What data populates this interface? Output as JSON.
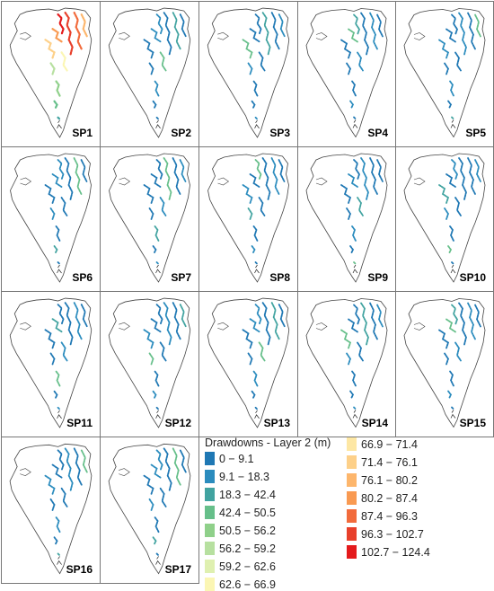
{
  "panels": [
    {
      "label": "SP1"
    },
    {
      "label": "SP2"
    },
    {
      "label": "SP3"
    },
    {
      "label": "SP4"
    },
    {
      "label": "SP5"
    },
    {
      "label": "SP6"
    },
    {
      "label": "SP7"
    },
    {
      "label": "SP8"
    },
    {
      "label": "SP9"
    },
    {
      "label": "SP10"
    },
    {
      "label": "SP11"
    },
    {
      "label": "SP12"
    },
    {
      "label": "SP13"
    },
    {
      "label": "SP14"
    },
    {
      "label": "SP15"
    },
    {
      "label": "SP16"
    },
    {
      "label": "SP17"
    }
  ],
  "legend": {
    "title": "Drawdowns - Layer  2 (m)",
    "classes": [
      {
        "label": "0 − 9.1",
        "color": "#1f78b4"
      },
      {
        "label": "9.1 − 18.3",
        "color": "#2b8cbe"
      },
      {
        "label": "18.3 − 42.4",
        "color": "#41a3a0"
      },
      {
        "label": "42.4 − 50.5",
        "color": "#66bf8a"
      },
      {
        "label": "50.5 − 56.2",
        "color": "#8fd08a"
      },
      {
        "label": "56.2 − 59.2",
        "color": "#b7e0a0"
      },
      {
        "label": "59.2 − 62.6",
        "color": "#dff0b0"
      },
      {
        "label": "62.6 − 66.9",
        "color": "#fbf6b4"
      },
      {
        "label": "66.9 − 71.4",
        "color": "#fde7a4"
      },
      {
        "label": "71.4 − 76.1",
        "color": "#fdd089"
      },
      {
        "label": "76.1 − 80.2",
        "color": "#fdb66c"
      },
      {
        "label": "80.2 − 87.4",
        "color": "#f99a52"
      },
      {
        "label": "87.4 − 96.3",
        "color": "#f26b3c"
      },
      {
        "label": "96.3 − 102.7",
        "color": "#e8402b"
      },
      {
        "label": "102.7 − 124.4",
        "color": "#e41a1c"
      }
    ]
  }
}
